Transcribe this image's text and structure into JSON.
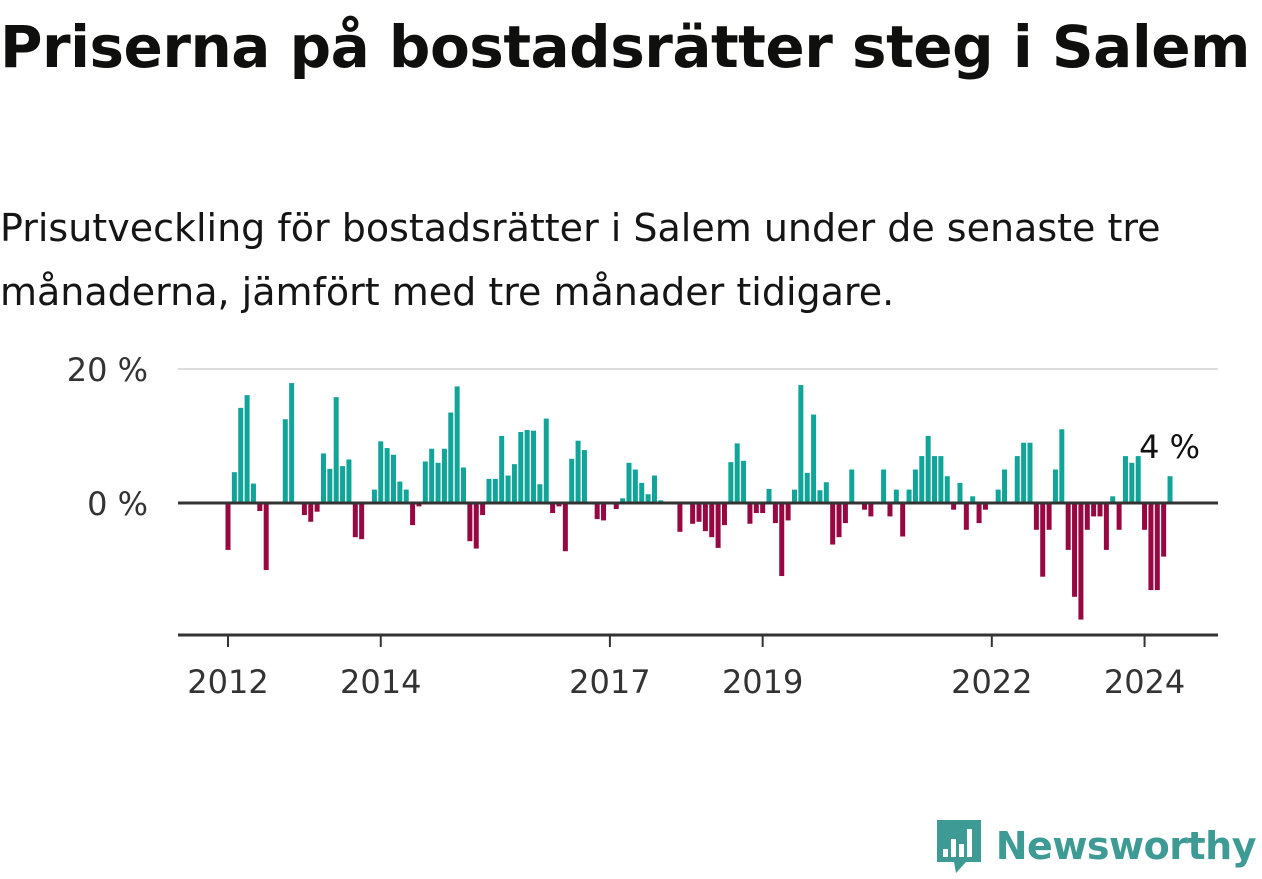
{
  "title": "Priserna på bostadsrätter steg i Salem",
  "subtitle": "Prisutveckling för bostadsrätter i Salem under de senaste tre månaderna, jämfört med tre månader tidigare.",
  "brand": {
    "name": "Newsworthy",
    "logo_icon": "newsworthy-chart-bubble-icon"
  },
  "colors": {
    "positive": "#11a59a",
    "negative": "#980741",
    "baseline": "#333333",
    "grid": "#dddddd",
    "brand": "#3e9a95"
  },
  "chart_data": {
    "type": "bar",
    "title": "Priserna på bostadsrätter steg i Salem",
    "xlabel": "",
    "ylabel": "",
    "ylim": [
      -20,
      20
    ],
    "grid": true,
    "y_ticks": [
      {
        "value": 0,
        "label": "0 %"
      },
      {
        "value": 20,
        "label": "20 %"
      }
    ],
    "x_ticks": [
      {
        "value": 2012,
        "label": "2012"
      },
      {
        "value": 2014,
        "label": "2014"
      },
      {
        "value": 2017,
        "label": "2017"
      },
      {
        "value": 2019,
        "label": "2019"
      },
      {
        "value": 2022,
        "label": "2022"
      },
      {
        "value": 2024,
        "label": "2024"
      }
    ],
    "start": "2012-01",
    "last_label": "4 %",
    "values": [
      -7,
      4.6,
      14.2,
      16.1,
      2.9,
      -1.2,
      -10,
      0,
      0,
      12.5,
      17.9,
      0,
      -1.8,
      -2.8,
      -1.3,
      7.4,
      5.1,
      15.8,
      5.5,
      6.5,
      -5.1,
      -5.4,
      0,
      2,
      9.2,
      8.2,
      7.2,
      3.2,
      2,
      -3.3,
      -0.5,
      6.2,
      8.1,
      6,
      8.1,
      13.5,
      17.4,
      5.3,
      -5.7,
      -6.8,
      -1.8,
      3.6,
      3.6,
      10,
      4.1,
      5.8,
      10.6,
      10.9,
      10.8,
      2.8,
      12.6,
      -1.5,
      -0.5,
      -7.2,
      6.6,
      9.3,
      7.9,
      0,
      -2.4,
      -2.6,
      0,
      -0.9,
      0.7,
      6,
      5,
      3,
      1.3,
      4.1,
      0.4,
      0,
      0,
      -4.3,
      0,
      -3.1,
      -2.8,
      -4.2,
      -5.1,
      -6.7,
      -3.3,
      6.1,
      8.9,
      6.3,
      -3.1,
      -1.5,
      -1.5,
      2.1,
      -3,
      -10.9,
      -2.6,
      2,
      17.6,
      4.5,
      13.2,
      1.9,
      3.1,
      -6.2,
      -5.1,
      -3,
      5,
      0,
      -1,
      -2,
      0,
      5,
      -2,
      2,
      -5,
      2,
      5,
      7,
      10,
      7,
      7,
      4,
      -1,
      3,
      -4,
      1,
      -3,
      -1,
      0,
      2,
      5,
      0,
      7,
      9,
      9,
      -4,
      -11,
      -4,
      5,
      11,
      -7,
      -14,
      -17.4,
      -4,
      -2,
      -2,
      -7,
      1,
      -4,
      7,
      6,
      7,
      -4,
      -13,
      -13,
      -8,
      4
    ]
  }
}
